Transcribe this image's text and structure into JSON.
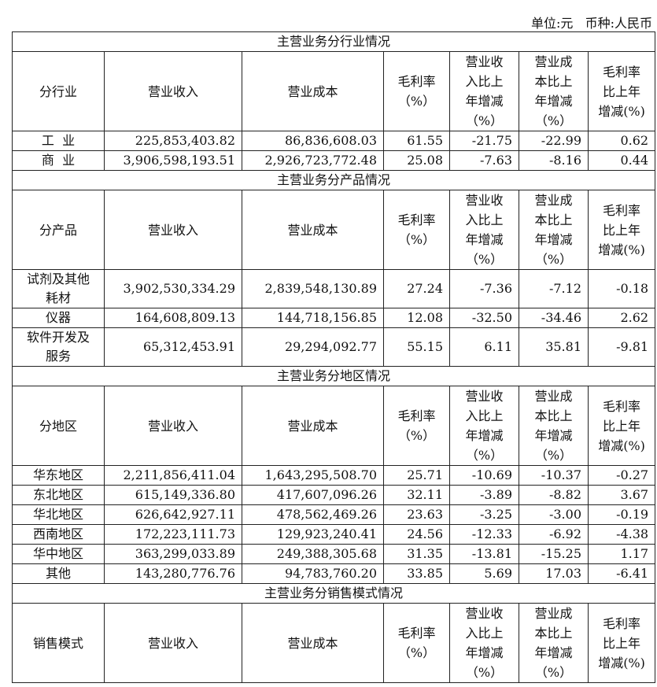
{
  "unit_line": "单位:元   币种:人民币",
  "headers": [
    "营业收入",
    "营业成本",
    "毛利率\n（%）",
    "营业收\n入比上\n年增减\n（%）",
    "营业成\n本比上\n年增减\n（%）",
    "毛利率\n比上年\n增减(%)"
  ],
  "sections": [
    {
      "title": "主营业务分行业情况",
      "first_header": "分行业",
      "rows": [
        {
          "label": "工  业",
          "values": [
            "225,853,403.82",
            "86,836,608.03",
            "61.55",
            "-21.75",
            "-22.99",
            "0.62"
          ]
        },
        {
          "label": "商  业",
          "values": [
            "3,906,598,193.51",
            "2,926,723,772.48",
            "25.08",
            "-7.63",
            "-8.16",
            "0.44"
          ]
        }
      ]
    },
    {
      "title": "主营业务分产品情况",
      "first_header": "分产品",
      "rows": [
        {
          "label": "试剂及其他耗材",
          "values": [
            "3,902,530,334.29",
            "2,839,548,130.89",
            "27.24",
            "-7.36",
            "-7.12",
            "-0.18"
          ]
        },
        {
          "label": "仪器",
          "values": [
            "164,608,809.13",
            "144,718,156.85",
            "12.08",
            "-32.50",
            "-34.46",
            "2.62"
          ]
        },
        {
          "label": "软件开发及服务",
          "values": [
            "65,312,453.91",
            "29,294,092.77",
            "55.15",
            "6.11",
            "35.81",
            "-9.81"
          ]
        }
      ]
    },
    {
      "title": "主营业务分地区情况",
      "first_header": "分地区",
      "rows": [
        {
          "label": "华东地区",
          "values": [
            "2,211,856,411.04",
            "1,643,295,508.70",
            "25.71",
            "-10.69",
            "-10.37",
            "-0.27"
          ]
        },
        {
          "label": "东北地区",
          "values": [
            "615,149,336.80",
            "417,607,096.26",
            "32.11",
            "-3.89",
            "-8.82",
            "3.67"
          ]
        },
        {
          "label": "华北地区",
          "values": [
            "626,642,927.11",
            "478,562,469.26",
            "23.63",
            "-3.25",
            "-3.00",
            "-0.19"
          ]
        },
        {
          "label": "西南地区",
          "values": [
            "172,223,111.73",
            "129,923,240.41",
            "24.56",
            "-12.33",
            "-6.92",
            "-4.38"
          ]
        },
        {
          "label": "华中地区",
          "values": [
            "363,299,033.89",
            "249,388,305.68",
            "31.35",
            "-13.81",
            "-15.25",
            "1.17"
          ]
        },
        {
          "label": "其他",
          "values": [
            "143,280,776.76",
            "94,783,760.20",
            "33.85",
            "5.69",
            "17.03",
            "-6.41"
          ]
        }
      ]
    },
    {
      "title": "主营业务分销售模式情况",
      "first_header": "销售模式",
      "rows": []
    }
  ]
}
